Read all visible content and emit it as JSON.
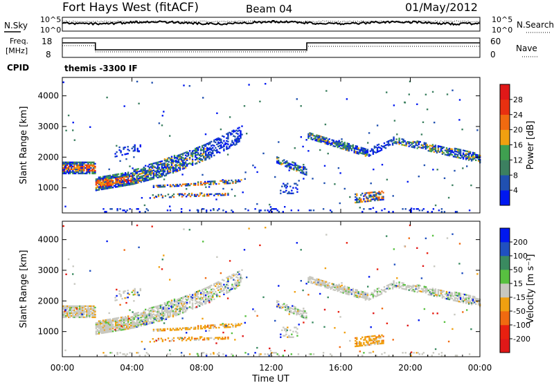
{
  "header": {
    "station": "Fort Hays West (fitACF)",
    "beam": "Beam 04",
    "date": "01/May/2012"
  },
  "labels": {
    "nsky": "N.Sky",
    "nsearch": "N.Search",
    "freq_line1": "Freq.",
    "freq_line2": "[MHz]",
    "nave": "Nave",
    "cpid": "CPID",
    "cpid_value": "themis -3300 IF",
    "noise_tick_hi": "10^5",
    "noise_tick_lo": "10^0",
    "freq_tick_hi": "18",
    "freq_tick_lo": "8",
    "nave_tick_hi": "60",
    "nave_tick_lo": "0"
  },
  "chart_data": [
    {
      "type": "heatmap",
      "name": "power",
      "ylabel": "Slant Range [km]",
      "xlabel": "",
      "yticks": [
        1000,
        2000,
        3000,
        4000
      ],
      "ylim": [
        180,
        4600
      ],
      "colorbar": {
        "label": "Power [dB]",
        "ticks": [
          "4",
          "8",
          "12",
          "16",
          "20",
          "24",
          "28"
        ],
        "colors": [
          "#0018f0",
          "#2050b0",
          "#3c8060",
          "#3fa050",
          "#f0a010",
          "#f06a10",
          "#e83010",
          "#e01818"
        ]
      }
    },
    {
      "type": "heatmap",
      "name": "velocity",
      "ylabel": "Slant Range [km]",
      "xlabel": "Time UT",
      "yticks": [
        1000,
        2000,
        3000,
        4000
      ],
      "ylim": [
        180,
        4600
      ],
      "xticks": [
        "00:00",
        "04:00",
        "08:00",
        "12:00",
        "16:00",
        "20:00",
        "00:00"
      ],
      "colorbar": {
        "label": "Velocity [m s⁻¹]",
        "ticks": [
          "200",
          "100",
          "50",
          "15",
          "-15",
          "-50",
          "-100",
          "-200"
        ],
        "colors": [
          "#0018f0",
          "#2050c0",
          "#3a8a60",
          "#58c040",
          "#c8c8c0",
          "#f0a010",
          "#f06a10",
          "#e82010",
          "#e01818"
        ]
      }
    }
  ]
}
